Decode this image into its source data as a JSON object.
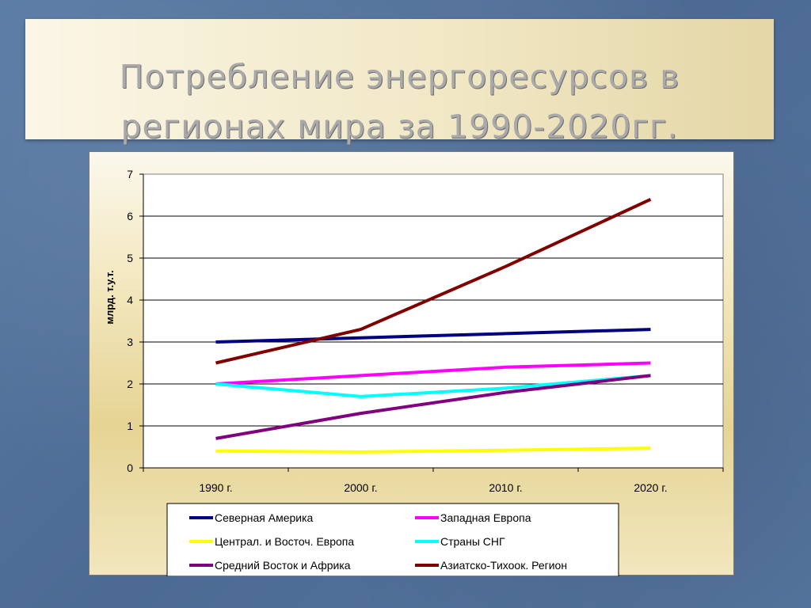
{
  "slide": {
    "title": "Потребление энергоресурсов в\nрегионах мира за 1990-2020гг."
  },
  "chart_data": {
    "type": "line",
    "title": "",
    "xlabel": "",
    "ylabel": "млрд. т.у.т.",
    "categories": [
      "1990 г.",
      "2000 г.",
      "2010 г.",
      "2020 г."
    ],
    "ylim": [
      0,
      7
    ],
    "yticks": [
      "0",
      "1",
      "2",
      "3",
      "4",
      "5",
      "6",
      "7"
    ],
    "grid": true,
    "legend_position": "bottom",
    "series": [
      {
        "name": "Северная Америка",
        "color": "#000080",
        "values": [
          3.0,
          3.1,
          3.2,
          3.3
        ]
      },
      {
        "name": "Западная Европа",
        "color": "#ff00ff",
        "values": [
          2.0,
          2.2,
          2.4,
          2.5
        ]
      },
      {
        "name": "Централ. и Восточ. Европа",
        "color": "#ffff00",
        "values": [
          0.4,
          0.38,
          0.42,
          0.47
        ]
      },
      {
        "name": "Страны СНГ",
        "color": "#00ffff",
        "values": [
          2.0,
          1.7,
          1.9,
          2.2
        ]
      },
      {
        "name": "Средний Восток и Африка",
        "color": "#800080",
        "values": [
          0.7,
          1.3,
          1.8,
          2.2
        ]
      },
      {
        "name": "Азиатско-Тихоок. Регион",
        "color": "#800000",
        "values": [
          2.5,
          3.3,
          4.8,
          6.4
        ]
      }
    ]
  }
}
